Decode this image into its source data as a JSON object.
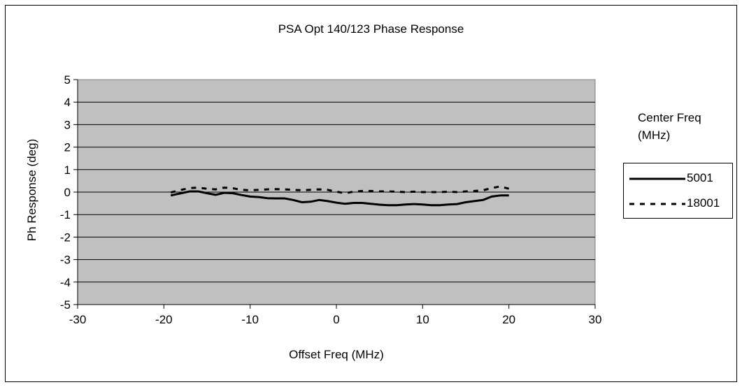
{
  "chart_data": {
    "type": "line",
    "title": "PSA Opt 140/123 Phase Response",
    "xlabel": "Offset Freq (MHz)",
    "ylabel": "Ph Response (deg)",
    "xlim": [
      -30,
      30
    ],
    "ylim": [
      -5,
      5
    ],
    "x_ticks": [
      "-30",
      "-20",
      "-10",
      "0",
      "10",
      "20",
      "30"
    ],
    "y_ticks": [
      "5",
      "4",
      "3",
      "2",
      "1",
      "0",
      "-1",
      "-2",
      "-3",
      "-4",
      "-5"
    ],
    "grid": "horizontal",
    "plot_background": "#c0c0c0",
    "legend": {
      "title": "Center Freq (MHz)",
      "placement": "right"
    },
    "series": [
      {
        "name": "5001",
        "style": "solid",
        "color": "#000000",
        "x": [
          -19.2,
          -18,
          -17,
          -16,
          -15,
          -14,
          -13,
          -12,
          -11,
          -10,
          -9,
          -8,
          -7,
          -6,
          -5,
          -4,
          -3,
          -2,
          -1,
          0,
          1,
          2,
          3,
          4,
          5,
          6,
          7,
          8,
          9,
          10,
          11,
          12,
          13,
          14,
          15,
          16,
          17,
          18,
          19,
          20
        ],
        "y": [
          -0.15,
          -0.05,
          0.03,
          0.03,
          -0.05,
          -0.12,
          -0.03,
          -0.05,
          -0.13,
          -0.2,
          -0.22,
          -0.27,
          -0.28,
          -0.28,
          -0.35,
          -0.45,
          -0.43,
          -0.35,
          -0.4,
          -0.47,
          -0.52,
          -0.48,
          -0.48,
          -0.52,
          -0.56,
          -0.58,
          -0.58,
          -0.55,
          -0.53,
          -0.55,
          -0.58,
          -0.58,
          -0.55,
          -0.53,
          -0.45,
          -0.4,
          -0.35,
          -0.2,
          -0.15,
          -0.15
        ]
      },
      {
        "name": "18001",
        "style": "dashed",
        "color": "#000000",
        "x": [
          -19.2,
          -18,
          -17,
          -16,
          -15,
          -14,
          -13,
          -12,
          -11,
          -10,
          -9,
          -8,
          -7,
          -6,
          -5,
          -4,
          -3,
          -2,
          -1,
          0,
          1,
          2,
          3,
          4,
          5,
          6,
          7,
          8,
          9,
          10,
          11,
          12,
          13,
          14,
          15,
          16,
          17,
          18,
          19,
          20
        ],
        "y": [
          -0.02,
          0.1,
          0.18,
          0.2,
          0.15,
          0.12,
          0.2,
          0.17,
          0.1,
          0.08,
          0.1,
          0.12,
          0.13,
          0.12,
          0.1,
          0.08,
          0.1,
          0.12,
          0.1,
          0.02,
          -0.05,
          0.02,
          0.05,
          0.05,
          0.03,
          0.03,
          0.02,
          0.0,
          0.02,
          0.0,
          0.0,
          0.0,
          0.02,
          0.0,
          0.03,
          0.05,
          0.08,
          0.18,
          0.25,
          0.15
        ]
      }
    ]
  }
}
